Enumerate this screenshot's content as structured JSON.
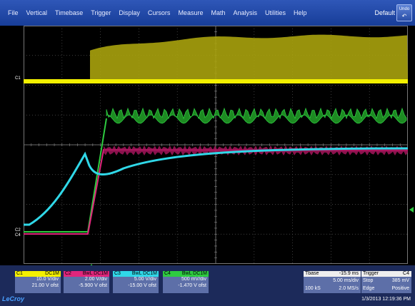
{
  "menu": [
    "File",
    "Vertical",
    "Timebase",
    "Trigger",
    "Display",
    "Cursors",
    "Measure",
    "Math",
    "Analysis",
    "Utilities",
    "Help"
  ],
  "default_label": "Default",
  "undo_label": "Undo",
  "markers": {
    "c1": "C1",
    "c2": "C2",
    "c4": "C4"
  },
  "colors": {
    "c1": "#f3f000",
    "c2": "#e0267c",
    "c3": "#30d8e8",
    "c4": "#2ecc40",
    "menubar": "#2248a8"
  },
  "channels": [
    {
      "name": "C1",
      "tag": "DC1M",
      "scale": "10.0 V/div",
      "offset": "21.00 V ofst"
    },
    {
      "name": "C2",
      "tag": "BwL DC1M",
      "scale": "2.00 V/div",
      "offset": "-5.900 V ofst"
    },
    {
      "name": "C3",
      "tag": "BwL DC1M",
      "scale": "5.00 V/div",
      "offset": "-15.00 V ofst"
    },
    {
      "name": "C4",
      "tag": "BwL DC1M",
      "scale": "500 mV/div",
      "offset": "-1.470 V ofst"
    }
  ],
  "timebase": {
    "label": "Tbase",
    "delay": "-15.9 ms",
    "scale": "5.00 ms/div",
    "samples": "100 kS",
    "rate": "2.0 MS/s"
  },
  "trigger": {
    "label": "Trigger",
    "source": "C4",
    "mode": "Stop",
    "level": "385 mV",
    "type": "Edge",
    "slope": "Positive"
  },
  "logo": "LeCroy",
  "timestamp": "1/3/2013 12:19:36 PM"
}
